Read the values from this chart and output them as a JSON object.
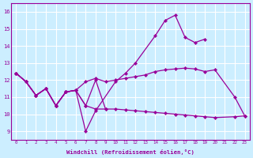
{
  "xlabel": "Windchill (Refroidissement éolien,°C)",
  "bg_color": "#cceeff",
  "line_color": "#990099",
  "grid_color": "#ffffff",
  "ylim": [
    8.5,
    16.5
  ],
  "xlim": [
    -0.5,
    23.5
  ],
  "yticks": [
    9,
    10,
    11,
    12,
    13,
    14,
    15,
    16
  ],
  "xticks": [
    0,
    1,
    2,
    3,
    4,
    5,
    6,
    7,
    8,
    9,
    10,
    11,
    12,
    13,
    14,
    15,
    16,
    17,
    18,
    19,
    20,
    21,
    22,
    23
  ],
  "lines": [
    {
      "x": [
        0,
        1,
        2,
        3,
        4,
        5,
        6,
        7,
        8,
        10,
        11,
        12,
        14,
        15,
        16,
        17,
        18,
        19
      ],
      "y": [
        12.4,
        11.9,
        11.1,
        11.5,
        10.5,
        11.3,
        11.4,
        9.0,
        10.2,
        11.9,
        12.4,
        13.0,
        14.6,
        15.5,
        15.8,
        14.5,
        14.2,
        14.4
      ]
    },
    {
      "x": [
        0,
        1,
        2,
        3,
        4,
        5,
        6,
        7,
        8,
        9,
        10,
        11,
        12,
        13,
        14,
        15,
        16,
        17,
        18,
        19,
        20,
        22,
        23
      ],
      "y": [
        12.4,
        11.9,
        11.1,
        11.5,
        10.5,
        11.3,
        11.4,
        11.9,
        12.1,
        11.9,
        12.0,
        12.1,
        12.2,
        12.3,
        12.5,
        12.6,
        12.65,
        12.7,
        12.65,
        12.5,
        12.6,
        11.0,
        9.9
      ]
    },
    {
      "x": [
        0,
        1,
        2,
        3,
        4,
        5,
        6,
        7,
        8,
        9
      ],
      "y": [
        12.4,
        11.9,
        11.1,
        11.5,
        10.5,
        11.3,
        11.4,
        10.5,
        12.0,
        10.3
      ]
    },
    {
      "x": [
        0,
        1,
        2,
        3,
        4,
        5,
        6,
        7,
        8,
        9,
        10,
        11,
        12,
        13,
        14,
        15,
        16,
        17,
        18,
        19,
        20,
        22,
        23
      ],
      "y": [
        12.4,
        11.9,
        11.1,
        11.5,
        10.5,
        11.3,
        11.4,
        10.5,
        10.3,
        10.3,
        10.3,
        10.25,
        10.2,
        10.15,
        10.1,
        10.05,
        10.0,
        9.95,
        9.9,
        9.85,
        9.8,
        9.85,
        9.9
      ]
    }
  ]
}
